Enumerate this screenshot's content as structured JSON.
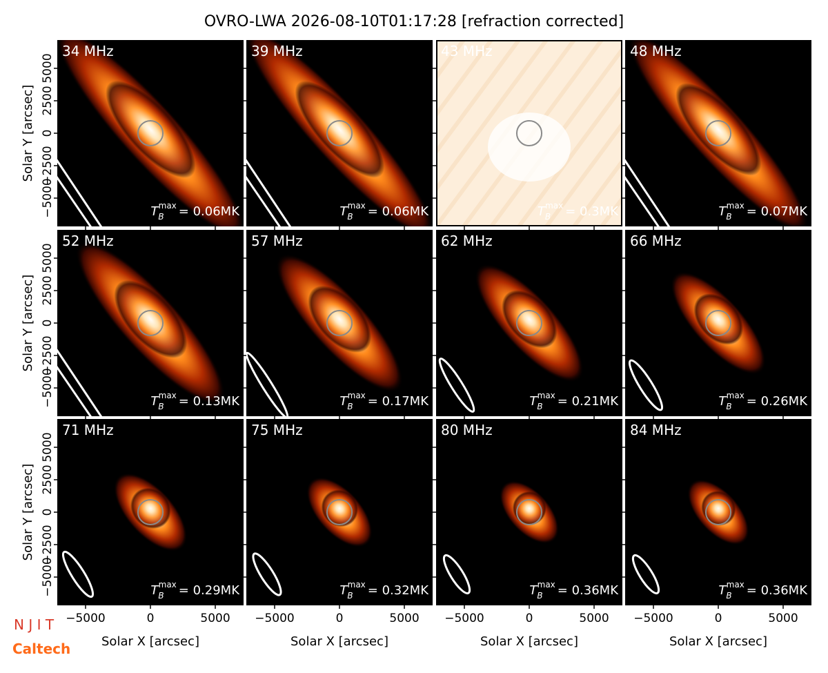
{
  "chart_data": {
    "type": "image-grid",
    "title": "OVRO-LWA 2026-08-10T01:17:28 [refraction corrected]",
    "xlabel": "Solar X [arcsec]",
    "ylabel": "Solar Y [arcsec]",
    "xlim": [
      -7180,
      7180
    ],
    "ylim": [
      -7180,
      7180
    ],
    "xticks": [
      {
        "value": -5000,
        "label": "−5000"
      },
      0,
      5000
    ],
    "yticks": [
      {
        "value": -5000,
        "label": "−5000"
      },
      {
        "value": -2500,
        "label": "−2500"
      },
      0,
      2500,
      5000
    ],
    "tb_symbol": "T",
    "tb_sub": "B",
    "tb_sup": "max",
    "panels": [
      {
        "frequency": "34 MHz",
        "tb_max": "= 0.06MK"
      },
      {
        "frequency": "39 MHz",
        "tb_max": "= 0.06MK"
      },
      {
        "frequency": "43 MHz",
        "tb_max": "= 0.3MK"
      },
      {
        "frequency": "48 MHz",
        "tb_max": "= 0.07MK"
      },
      {
        "frequency": "52 MHz",
        "tb_max": "= 0.13MK"
      },
      {
        "frequency": "57 MHz",
        "tb_max": "= 0.17MK"
      },
      {
        "frequency": "62 MHz",
        "tb_max": "= 0.21MK"
      },
      {
        "frequency": "66 MHz",
        "tb_max": "= 0.26MK"
      },
      {
        "frequency": "71 MHz",
        "tb_max": "= 0.29MK"
      },
      {
        "frequency": "75 MHz",
        "tb_max": "= 0.32MK"
      },
      {
        "frequency": "80 MHz",
        "tb_max": "= 0.36MK"
      },
      {
        "frequency": "84 MHz",
        "tb_max": "= 0.36MK"
      }
    ]
  },
  "logos": {
    "njit": "N J I T",
    "caltech": "Caltech"
  }
}
